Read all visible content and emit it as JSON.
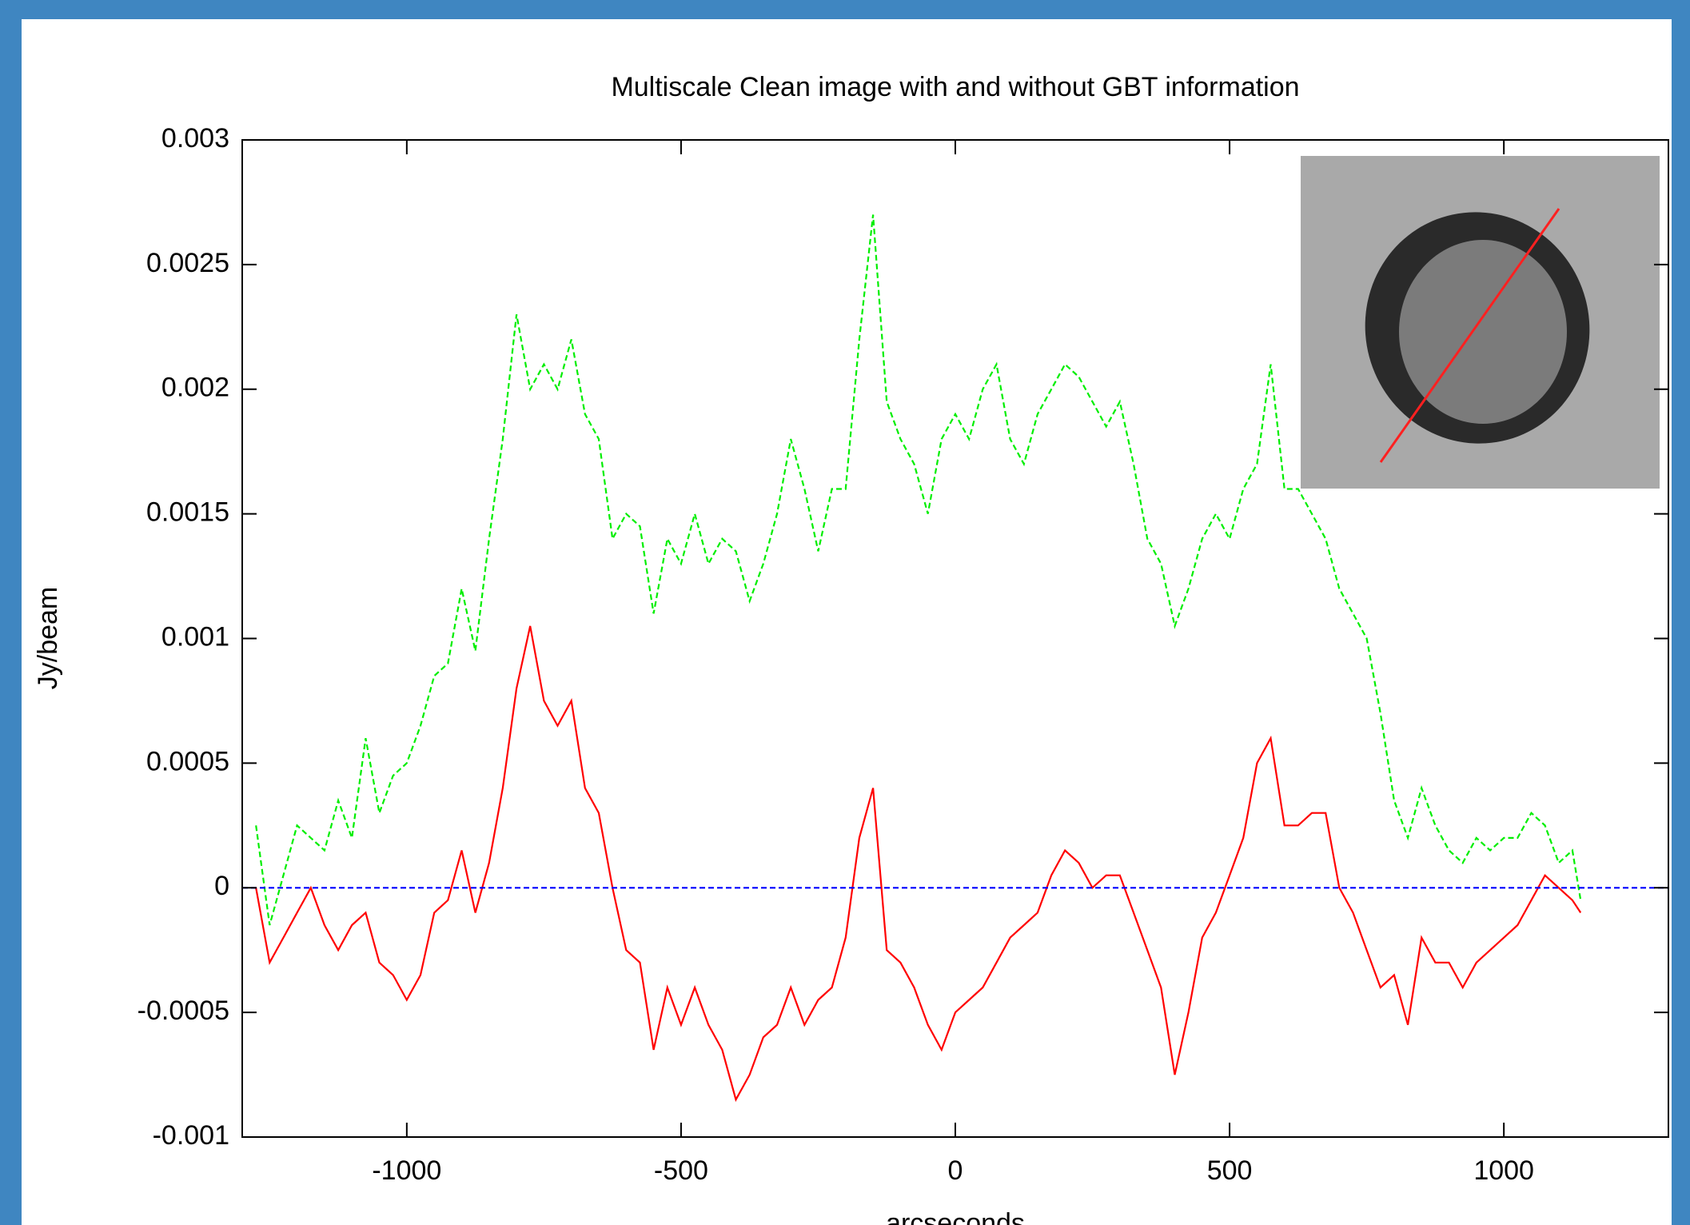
{
  "chart_data": {
    "type": "line",
    "title": "Multiscale Clean image with and without GBT information",
    "xlabel": "arcseconds",
    "ylabel": "Jy/beam",
    "xlim": [
      -1300,
      1300
    ],
    "xticks": [
      -1000,
      -500,
      0,
      500,
      1000
    ],
    "ylim": [
      -0.001,
      0.003
    ],
    "yticks": [
      -0.001,
      -0.0005,
      0,
      0.0005,
      0.001,
      0.0015,
      0.002,
      0.0025,
      0.003
    ],
    "x": [
      -1275,
      -1250,
      -1225,
      -1200,
      -1175,
      -1150,
      -1125,
      -1100,
      -1075,
      -1050,
      -1025,
      -1000,
      -975,
      -950,
      -925,
      -900,
      -875,
      -850,
      -825,
      -800,
      -775,
      -750,
      -725,
      -700,
      -675,
      -650,
      -625,
      -600,
      -575,
      -550,
      -525,
      -500,
      -475,
      -450,
      -425,
      -400,
      -375,
      -350,
      -325,
      -300,
      -275,
      -250,
      -225,
      -200,
      -175,
      -150,
      -125,
      -100,
      -75,
      -50,
      -25,
      0,
      25,
      50,
      75,
      100,
      125,
      150,
      175,
      200,
      225,
      250,
      275,
      300,
      325,
      350,
      375,
      400,
      425,
      450,
      475,
      500,
      525,
      550,
      575,
      600,
      625,
      650,
      675,
      700,
      725,
      750,
      775,
      800,
      825,
      850,
      875,
      900,
      925,
      950,
      975,
      1000,
      1025,
      1050,
      1075,
      1100,
      1125,
      1140
    ],
    "series": [
      {
        "color": "#00ee00",
        "dashed": true,
        "values": [
          0.00025,
          -0.00015,
          5e-05,
          0.00025,
          0.0002,
          0.00015,
          0.00035,
          0.0002,
          0.0006,
          0.0003,
          0.00045,
          0.0005,
          0.00065,
          0.00085,
          0.0009,
          0.0012,
          0.00095,
          0.0014,
          0.0018,
          0.0023,
          0.002,
          0.0021,
          0.002,
          0.0022,
          0.0019,
          0.0018,
          0.0014,
          0.0015,
          0.00145,
          0.0011,
          0.0014,
          0.0013,
          0.0015,
          0.0013,
          0.0014,
          0.00135,
          0.00115,
          0.0013,
          0.0015,
          0.0018,
          0.0016,
          0.00135,
          0.0016,
          0.0016,
          0.0022,
          0.0027,
          0.00195,
          0.0018,
          0.0017,
          0.0015,
          0.0018,
          0.0019,
          0.0018,
          0.002,
          0.0021,
          0.0018,
          0.0017,
          0.0019,
          0.002,
          0.0021,
          0.00205,
          0.00195,
          0.00185,
          0.00195,
          0.0017,
          0.0014,
          0.0013,
          0.00105,
          0.0012,
          0.0014,
          0.0015,
          0.0014,
          0.0016,
          0.0017,
          0.0021,
          0.0016,
          0.0016,
          0.0015,
          0.0014,
          0.0012,
          0.0011,
          0.001,
          0.0007,
          0.00035,
          0.0002,
          0.0004,
          0.00025,
          0.00015,
          0.0001,
          0.0002,
          0.00015,
          0.0002,
          0.0002,
          0.0003,
          0.00025,
          0.0001,
          0.00015,
          -5e-05
        ]
      },
      {
        "color": "#ff0000",
        "dashed": false,
        "values": [
          0,
          -0.0003,
          -0.0002,
          -0.0001,
          0,
          -0.00015,
          -0.00025,
          -0.00015,
          -0.0001,
          -0.0003,
          -0.00035,
          -0.00045,
          -0.00035,
          -0.0001,
          -5e-05,
          0.00015,
          -0.0001,
          0.0001,
          0.0004,
          0.0008,
          0.00105,
          0.00075,
          0.00065,
          0.00075,
          0.0004,
          0.0003,
          0,
          -0.00025,
          -0.0003,
          -0.00065,
          -0.0004,
          -0.00055,
          -0.0004,
          -0.00055,
          -0.00065,
          -0.00085,
          -0.00075,
          -0.0006,
          -0.00055,
          -0.0004,
          -0.00055,
          -0.00045,
          -0.0004,
          -0.0002,
          0.0002,
          0.0004,
          -0.00025,
          -0.0003,
          -0.0004,
          -0.00055,
          -0.00065,
          -0.0005,
          -0.00045,
          -0.0004,
          -0.0003,
          -0.0002,
          -0.00015,
          -0.0001,
          5e-05,
          0.00015,
          0.0001,
          0,
          5e-05,
          5e-05,
          -0.0001,
          -0.00025,
          -0.0004,
          -0.00075,
          -0.0005,
          -0.0002,
          -0.0001,
          5e-05,
          0.0002,
          0.0005,
          0.0006,
          0.00025,
          0.00025,
          0.0003,
          0.0003,
          0,
          -0.0001,
          -0.00025,
          -0.0004,
          -0.00035,
          -0.00055,
          -0.0002,
          -0.0003,
          -0.0003,
          -0.0004,
          -0.0003,
          -0.00025,
          -0.0002,
          -0.00015,
          -5e-05,
          5e-05,
          0,
          -5e-05,
          -0.0001
        ]
      },
      {
        "color": "#0000ff",
        "dashed": true,
        "x": [
          -1300,
          1300
        ],
        "values": [
          0,
          0
        ]
      }
    ]
  }
}
